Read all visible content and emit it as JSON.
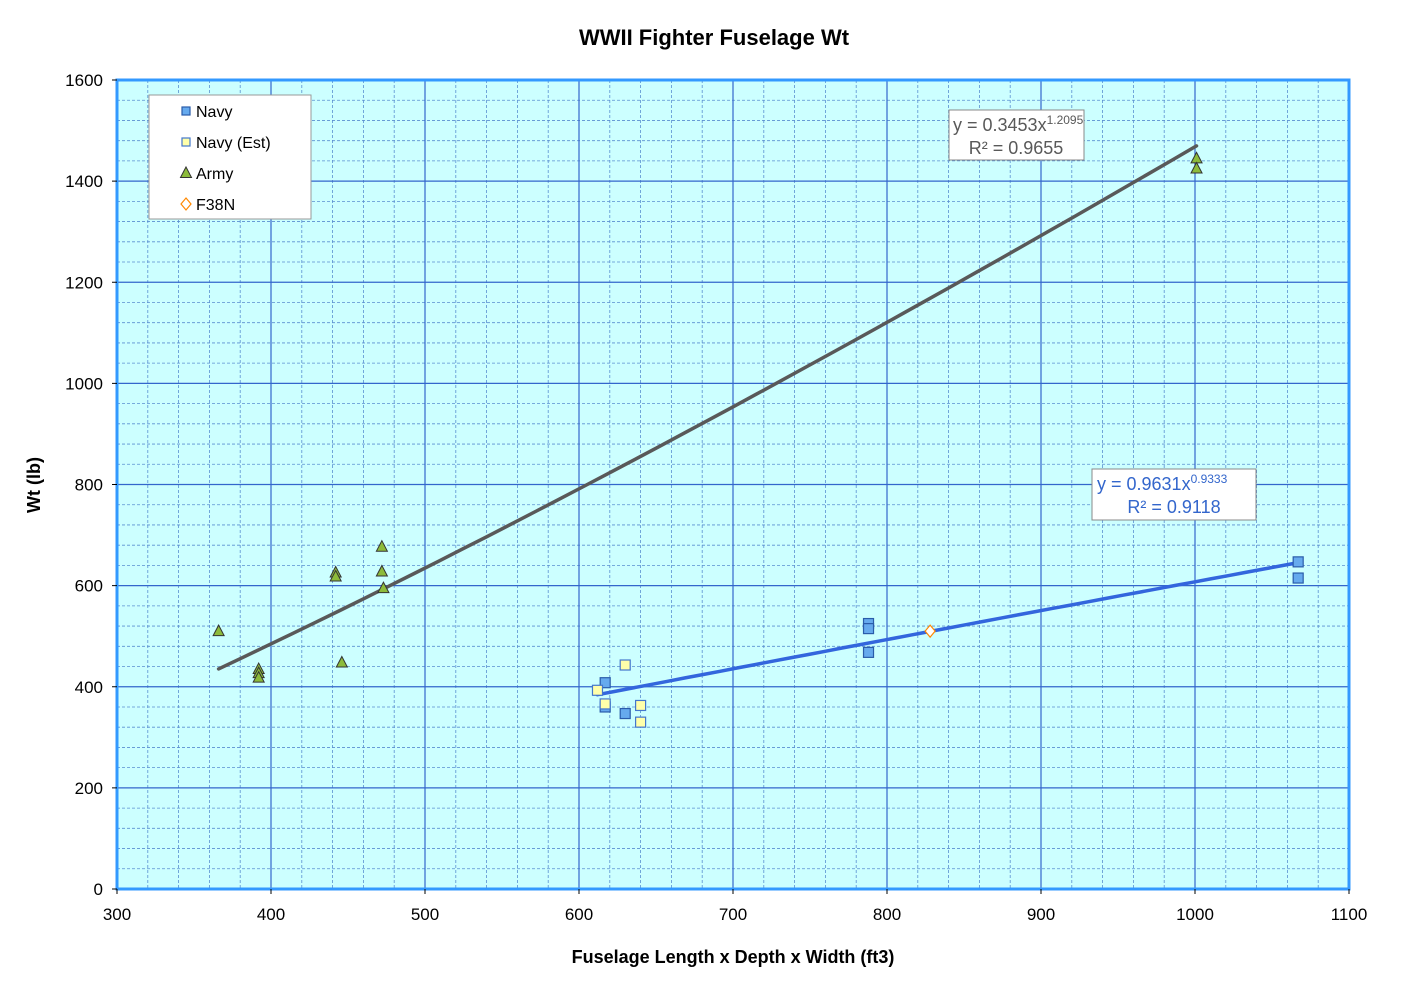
{
  "chart_data": {
    "type": "scatter",
    "title": "WWII Fighter Fuselage Wt",
    "xlabel": "Fuselage Length x  Depth x  Width (ft3)",
    "ylabel": "Wt (lb)",
    "xlim": [
      300,
      1100
    ],
    "ylim": [
      0,
      1600
    ],
    "x_ticks": [
      "300",
      "400",
      "500",
      "600",
      "700",
      "800",
      "900",
      "1000",
      "1100"
    ],
    "y_ticks": [
      "0",
      "200",
      "400",
      "600",
      "800",
      "1000",
      "1200",
      "1400",
      "1600"
    ],
    "grid": true,
    "legend_position": "top-left",
    "colors": {
      "plot_bg": "#ccffff",
      "plot_border": "#3399ff",
      "grid_major": "#3366cc",
      "grid_minor": "#5a8fd0",
      "navy_fill": "#66aaee",
      "navy_stroke": "#2a5caa",
      "navy_est_fill": "#ffffaa",
      "navy_est_stroke": "#4477cc",
      "army_fill": "#8dbb3b",
      "army_stroke": "#333333",
      "f38n_stroke": "#ff8800",
      "trend_army": "#595959",
      "trend_navy": "#3366dd"
    },
    "series": [
      {
        "name": "Navy",
        "marker": "square",
        "points": [
          [
            617,
            408
          ],
          [
            617,
            360
          ],
          [
            630,
            347
          ],
          [
            788,
            525
          ],
          [
            788,
            515
          ],
          [
            788,
            468
          ],
          [
            1067,
            647
          ],
          [
            1067,
            615
          ]
        ]
      },
      {
        "name": "Navy (Est)",
        "marker": "square-open",
        "points": [
          [
            612,
            393
          ],
          [
            617,
            366
          ],
          [
            630,
            443
          ],
          [
            640,
            363
          ],
          [
            640,
            330
          ]
        ]
      },
      {
        "name": "Army",
        "marker": "triangle",
        "points": [
          [
            366,
            510
          ],
          [
            392,
            435
          ],
          [
            392,
            427
          ],
          [
            392,
            418
          ],
          [
            442,
            626
          ],
          [
            442,
            618
          ],
          [
            446,
            448
          ],
          [
            472,
            677
          ],
          [
            472,
            628
          ],
          [
            473,
            595
          ],
          [
            1001,
            1445
          ],
          [
            1001,
            1425
          ]
        ]
      },
      {
        "name": "F38N",
        "marker": "diamond-open",
        "points": [
          [
            828,
            510
          ]
        ]
      }
    ],
    "trendlines": [
      {
        "series": "Army",
        "equation_main": "y = 0.3453x",
        "equation_exp": "1.2095",
        "r2": "R² = 0.9655",
        "a": 0.3453,
        "b": 1.2095,
        "x_range": [
          366,
          1001
        ]
      },
      {
        "series": "Navy",
        "equation_main": "y = 0.9631x",
        "equation_exp": "0.9333",
        "r2": "R² = 0.9118",
        "a": 0.9631,
        "b": 0.9333,
        "x_range": [
          612,
          1067
        ]
      }
    ]
  }
}
